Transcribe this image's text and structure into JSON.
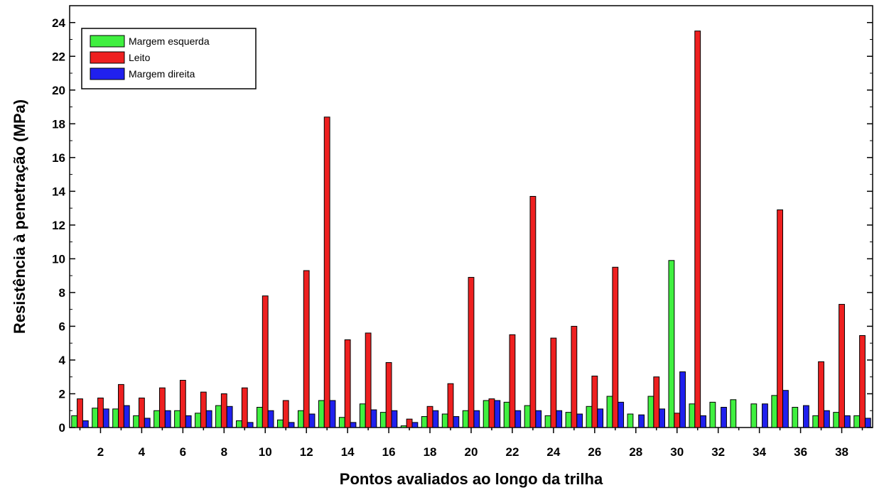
{
  "chart_data": {
    "type": "bar",
    "xlabel": "Pontos avaliados ao longo da trilha",
    "ylabel": "Resistência à penetração (MPa)",
    "ylim": [
      0,
      25
    ],
    "yticks": [
      0,
      2,
      4,
      6,
      8,
      10,
      12,
      14,
      16,
      18,
      20,
      22,
      24
    ],
    "xlim": [
      0.5,
      39.5
    ],
    "xticks": [
      2,
      4,
      6,
      8,
      10,
      12,
      14,
      16,
      18,
      20,
      22,
      24,
      26,
      28,
      30,
      32,
      34,
      36,
      38
    ],
    "grid": false,
    "legend_position": "top-left",
    "categories": [
      1,
      2,
      3,
      4,
      5,
      6,
      7,
      8,
      9,
      10,
      11,
      12,
      13,
      14,
      15,
      16,
      17,
      18,
      19,
      20,
      21,
      22,
      23,
      24,
      25,
      26,
      27,
      28,
      29,
      30,
      31,
      32,
      33,
      34,
      35,
      36,
      37,
      38,
      39
    ],
    "series": [
      {
        "name": "Margem esquerda",
        "color": "#40f040",
        "values": [
          0.7,
          1.15,
          1.1,
          0.7,
          1.0,
          1.0,
          0.85,
          1.3,
          0.4,
          1.2,
          0.45,
          1.0,
          1.6,
          0.6,
          1.4,
          0.9,
          0.1,
          0.65,
          0.8,
          1.0,
          1.6,
          1.5,
          1.3,
          0.7,
          0.9,
          1.25,
          1.85,
          0.8,
          1.85,
          9.9,
          1.4,
          1.5,
          1.65,
          1.4,
          1.9,
          1.2,
          0.7,
          0.9,
          0.7
        ]
      },
      {
        "name": "Leito",
        "color": "#ee2020",
        "values": [
          1.7,
          1.75,
          2.55,
          1.75,
          2.35,
          2.8,
          2.1,
          2.0,
          2.35,
          7.8,
          1.6,
          9.3,
          18.4,
          5.2,
          5.6,
          3.85,
          0.5,
          1.25,
          2.6,
          8.9,
          1.7,
          5.5,
          13.7,
          5.3,
          6.0,
          3.05,
          9.5,
          0.0,
          3.0,
          0.85,
          23.5,
          0.0,
          0.0,
          0.0,
          12.9,
          0.0,
          3.9,
          7.3,
          5.45
        ]
      },
      {
        "name": "Margem direita",
        "color": "#2020ee",
        "values": [
          0.4,
          1.1,
          1.3,
          0.55,
          1.0,
          0.7,
          1.0,
          1.25,
          0.3,
          1.0,
          0.3,
          0.8,
          1.6,
          0.3,
          1.05,
          1.0,
          0.3,
          1.0,
          0.65,
          1.0,
          1.6,
          1.0,
          1.0,
          1.0,
          0.8,
          1.1,
          1.5,
          0.75,
          1.1,
          3.3,
          0.7,
          1.2,
          0.0,
          1.4,
          2.2,
          1.3,
          1.0,
          0.7,
          0.55
        ]
      }
    ]
  }
}
